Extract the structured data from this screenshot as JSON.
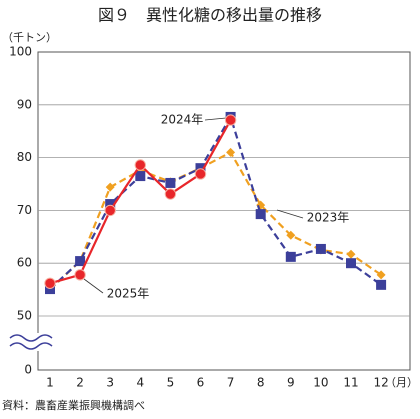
{
  "chart_data": {
    "type": "line",
    "title": "図９　異性化糖の移出量の推移",
    "y_unit": "（千トン）",
    "x_unit": "（月）",
    "source": "資料：農畜産業振興機構調べ",
    "categories": [
      "1",
      "2",
      "3",
      "4",
      "5",
      "6",
      "7",
      "8",
      "9",
      "10",
      "11",
      "12"
    ],
    "series": [
      {
        "name": "2023年",
        "color": "#f0a020",
        "dash": true,
        "marker": "diamond",
        "values": [
          55,
          60.4,
          74.4,
          77.6,
          75.4,
          78,
          81,
          71,
          65.3,
          62.5,
          61.7,
          57.8
        ]
      },
      {
        "name": "2024年",
        "color": "#3c3f9a",
        "dash": true,
        "marker": "square",
        "values": [
          55.1,
          60.4,
          71.2,
          76.5,
          75.2,
          78,
          87.7,
          69.3,
          61.2,
          62.7,
          60,
          55.9
        ]
      },
      {
        "name": "2025年",
        "color": "#e8262a",
        "dash": false,
        "marker": "circle",
        "values": [
          56.2,
          57.8,
          70,
          78.6,
          73.1,
          76.9,
          87.1,
          null,
          null,
          null,
          null,
          null
        ]
      }
    ],
    "ylim": [
      0,
      100
    ],
    "axis_break": [
      0,
      50
    ],
    "yticks": [
      0,
      50,
      60,
      70,
      80,
      90,
      100
    ],
    "grid": true
  }
}
